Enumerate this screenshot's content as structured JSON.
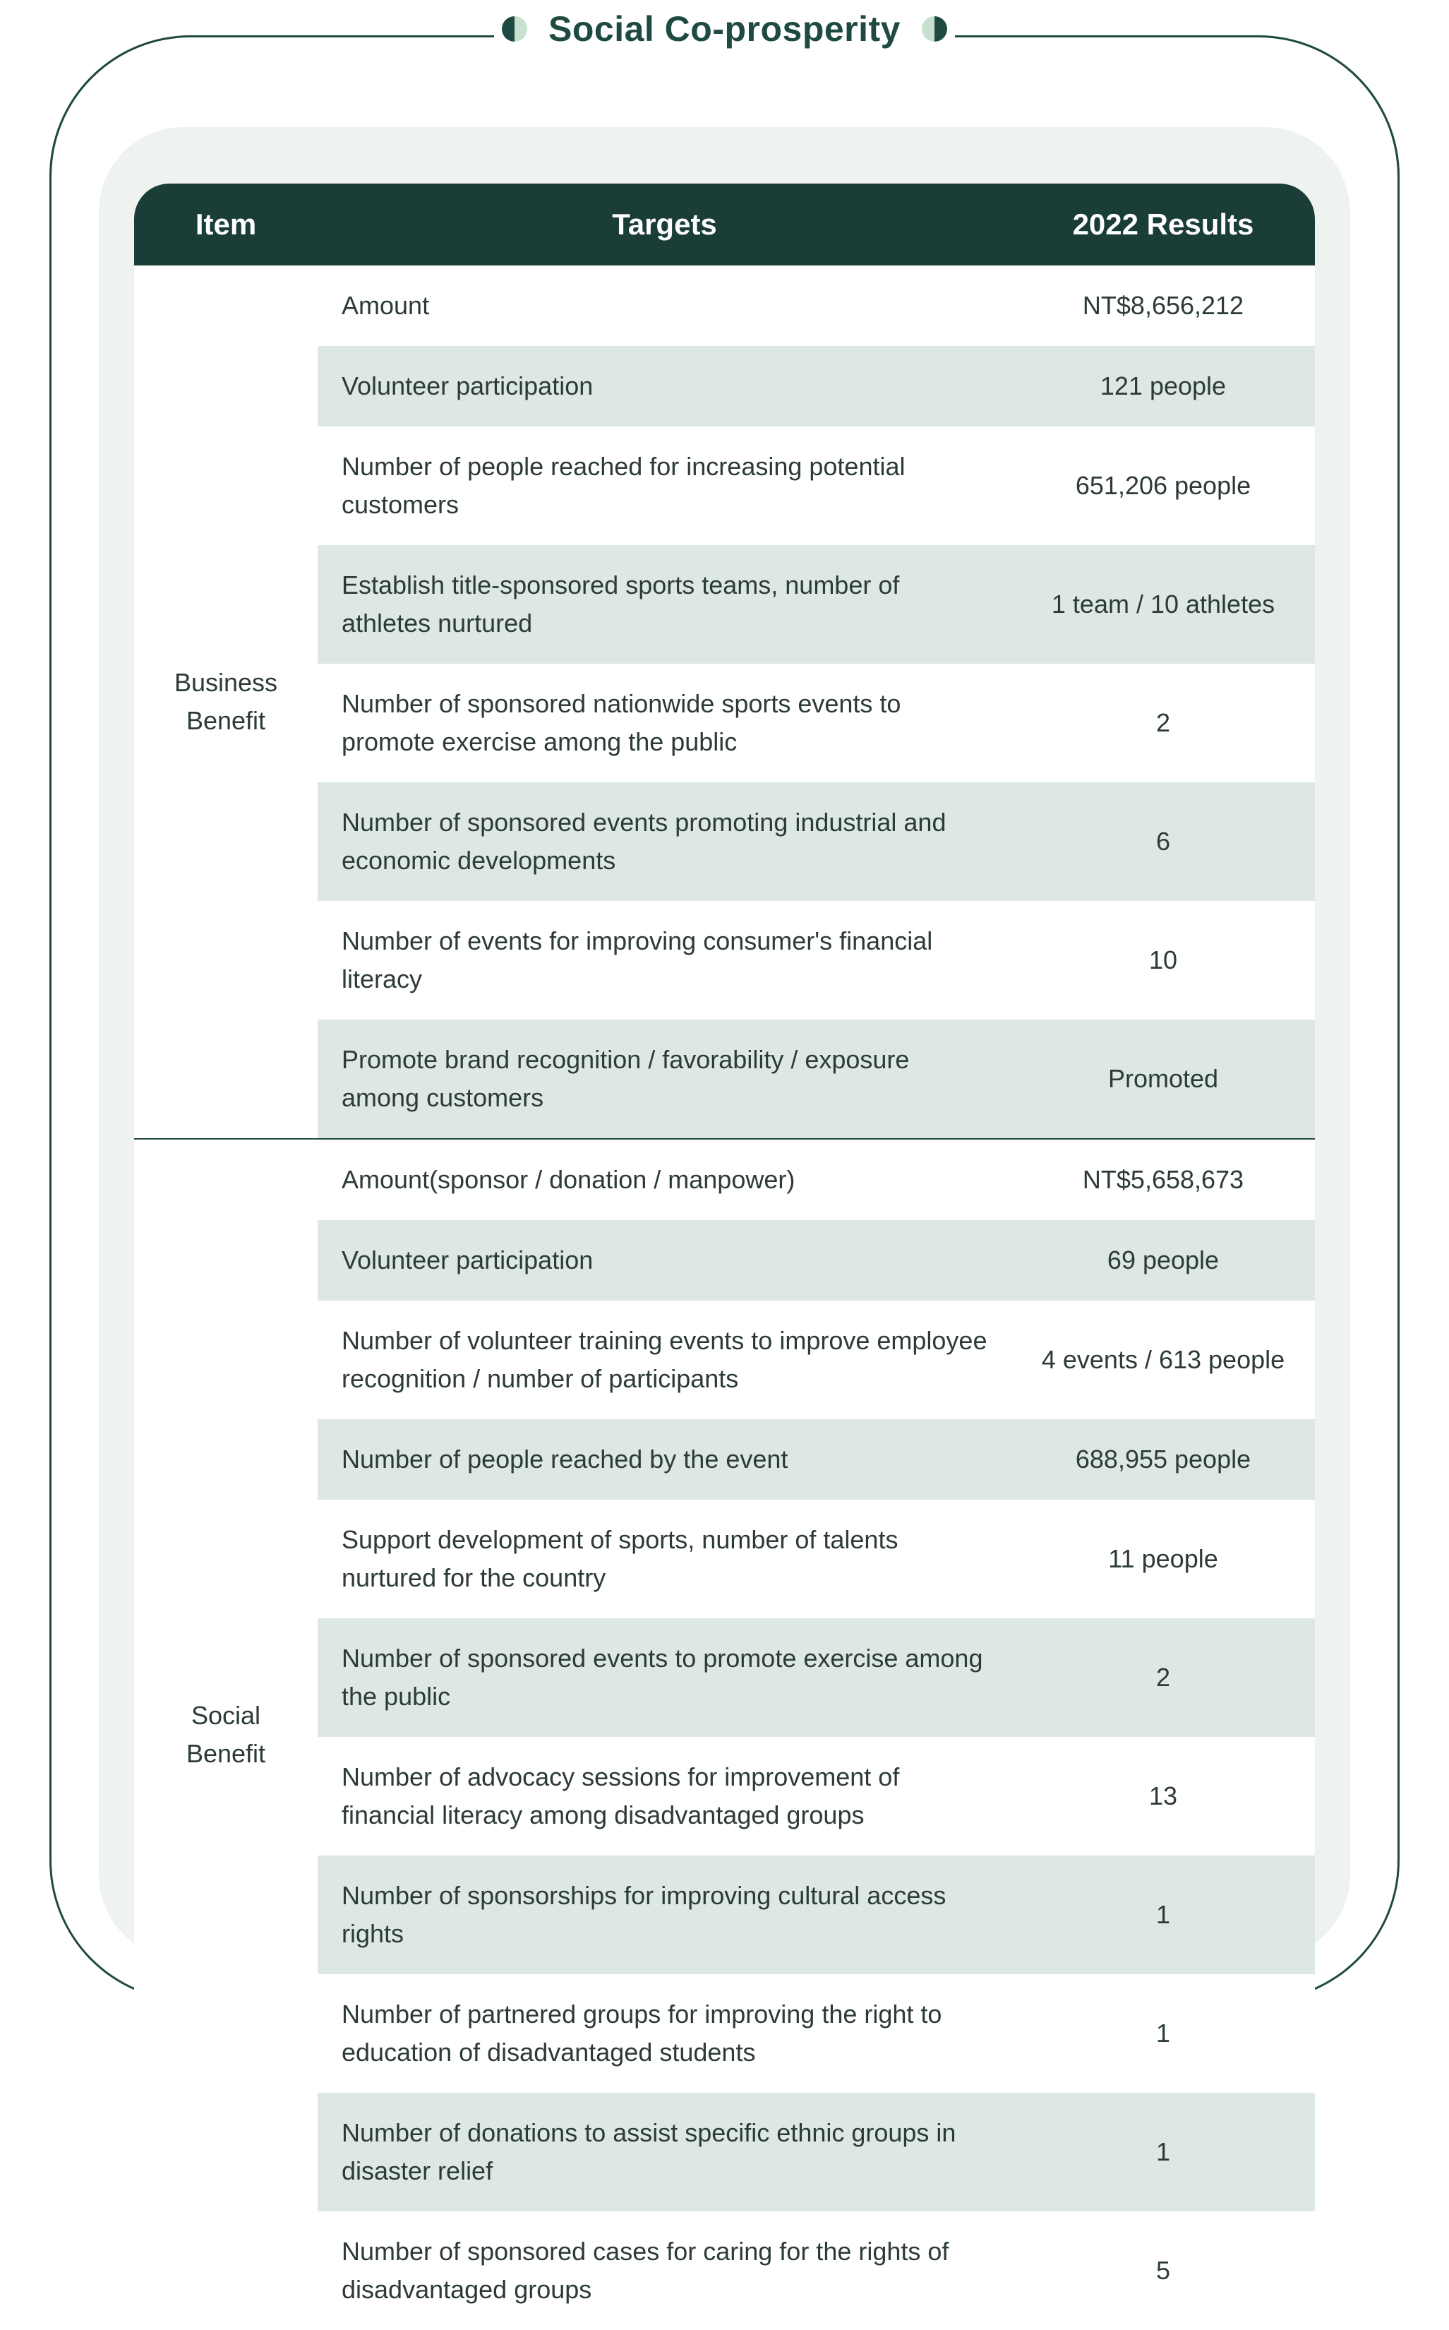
{
  "title": "Social Co-prosperity",
  "colors": {
    "frame_border": "#1f4a42",
    "inner_panel": "#eef3f0",
    "header_bg": "#1b3d38",
    "header_text": "#ffffff",
    "row_tint": "#dde8e2",
    "row_white": "#ffffff",
    "text": "#2d3b37",
    "dot_dark": "#1f4a42",
    "dot_light": "#c8e0d0"
  },
  "table": {
    "columns": [
      "Item",
      "Targets",
      "2022 Results"
    ],
    "sections": [
      {
        "item": "Business Benefit",
        "rows": [
          {
            "target": "Amount",
            "result": "NT$8,656,212"
          },
          {
            "target": "Volunteer participation",
            "result": "121 people"
          },
          {
            "target": "Number of people reached for increasing potential customers",
            "result": "651,206 people"
          },
          {
            "target": "Establish title-sponsored sports teams, number of athletes nurtured",
            "result": "1 team / 10 athletes"
          },
          {
            "target": "Number of sponsored nationwide sports events to promote exercise among the public",
            "result": "2"
          },
          {
            "target": "Number of sponsored events promoting industrial and economic developments",
            "result": "6"
          },
          {
            "target": "Number of events for improving consumer's financial literacy",
            "result": "10"
          },
          {
            "target": "Promote brand recognition / favorability / exposure among customers",
            "result": "Promoted"
          }
        ]
      },
      {
        "item": "Social Benefit",
        "rows": [
          {
            "target": "Amount(sponsor / donation / manpower)",
            "result": "NT$5,658,673"
          },
          {
            "target": "Volunteer participation",
            "result": "69 people"
          },
          {
            "target": "Number of volunteer training events to improve employee recognition / number of participants",
            "result": "4 events / 613 people"
          },
          {
            "target": "Number of people reached by the event",
            "result": "688,955 people"
          },
          {
            "target": "Support development of sports,  number of talents nurtured for the country",
            "result": "11 people"
          },
          {
            "target": "Number of sponsored events to promote exercise among the public",
            "result": "2"
          },
          {
            "target": "Number of advocacy sessions for improvement of financial literacy among disadvantaged groups",
            "result": "13"
          },
          {
            "target": "Number of sponsorships for improving cultural access rights",
            "result": "1"
          },
          {
            "target": "Number of partnered groups for improving the right to education of disadvantaged students",
            "result": "1"
          },
          {
            "target": "Number of donations to assist specific ethnic groups in disaster relief",
            "result": "1"
          },
          {
            "target": "Number of sponsored cases for caring for the rights of disadvantaged groups",
            "result": "5"
          }
        ]
      }
    ]
  }
}
